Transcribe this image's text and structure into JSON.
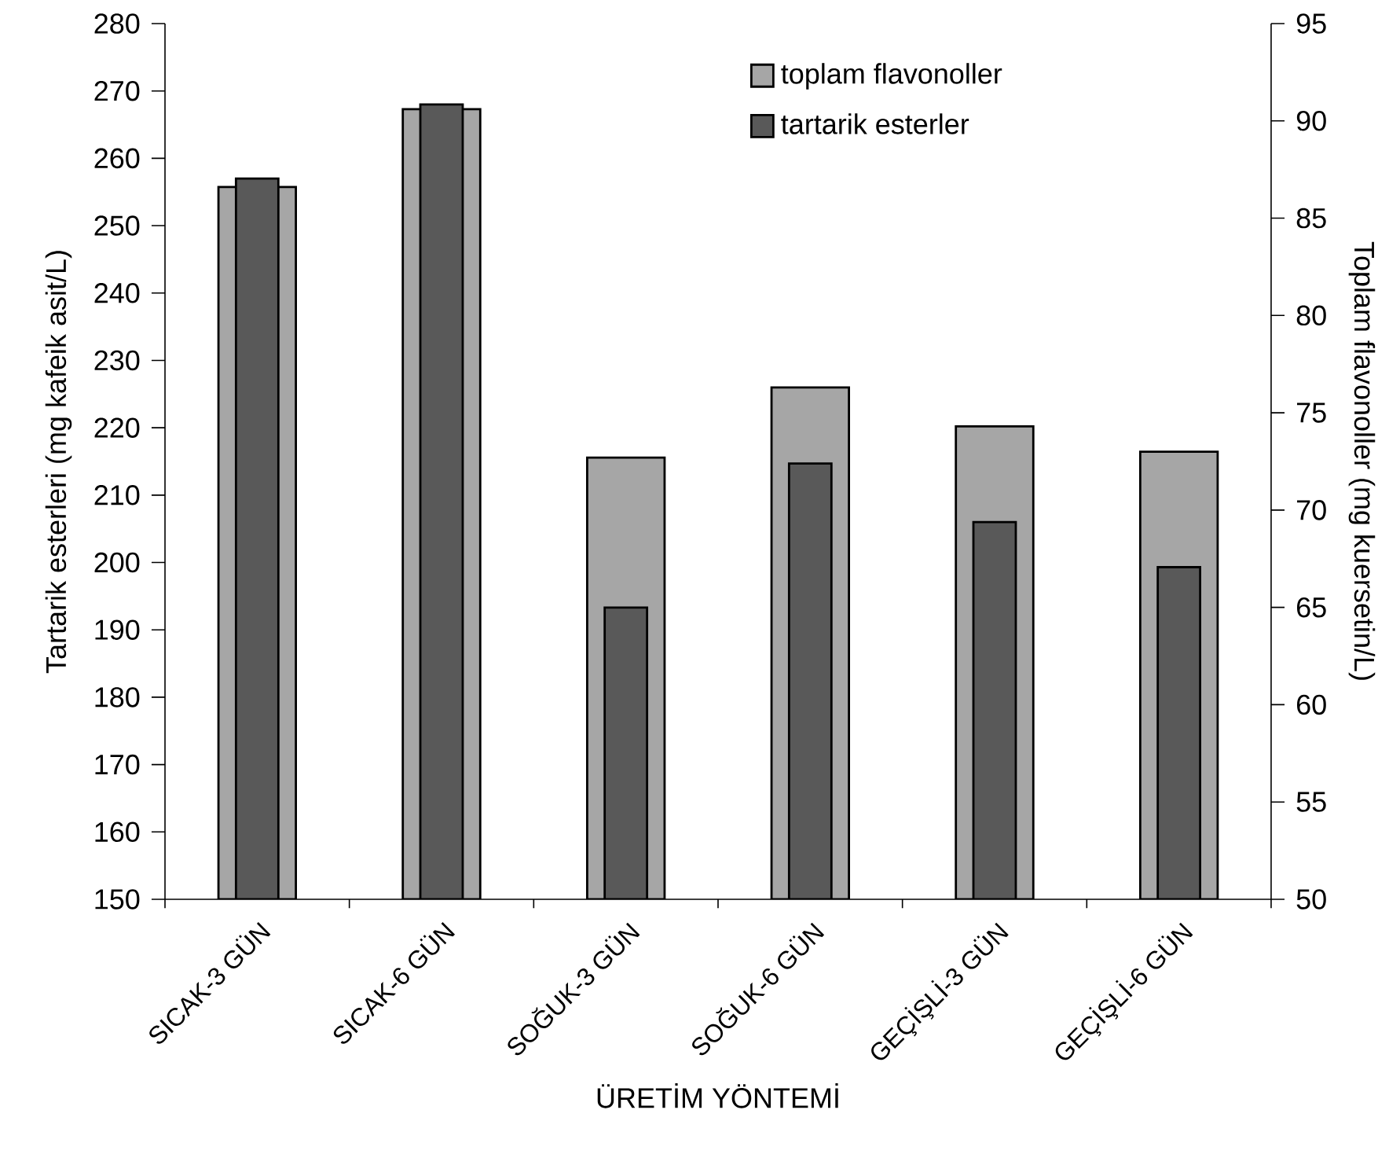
{
  "chart_data": {
    "type": "bar",
    "categories": [
      "SICAK-3 GÜN",
      "SICAK-6 GÜN",
      "SOĞUK-3 GÜN",
      "SOĞUK-6 GÜN",
      "GEÇİŞLİ-3 GÜN",
      "GEÇİŞLİ-6 GÜN"
    ],
    "series": [
      {
        "name": "toplam flavonoller",
        "color": "#a6a6a6",
        "axis": "y2",
        "values": [
          86.6,
          90.6,
          72.7,
          76.3,
          74.3,
          73.0
        ]
      },
      {
        "name": "tartarik esterler",
        "color": "#595959",
        "values": [
          257,
          268,
          193.3,
          214.7,
          206,
          199.3
        ]
      }
    ],
    "xlabel": "ÜRETİM YÖNTEMİ",
    "ylabel": "Tartarik esterleri (mg kafeik asit/L)",
    "y2label": "Toplam flavonoller (mg kuersetin/L)",
    "ylim": [
      150,
      280
    ],
    "yticks": [
      150,
      160,
      170,
      180,
      190,
      200,
      210,
      220,
      230,
      240,
      250,
      260,
      270,
      280
    ],
    "y2lim": [
      50,
      95
    ],
    "y2ticks": [
      50,
      55,
      60,
      65,
      70,
      75,
      80,
      85,
      90,
      95
    ],
    "legend": "top right"
  }
}
